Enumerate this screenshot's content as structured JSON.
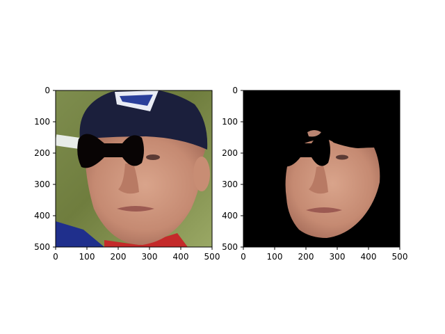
{
  "figure": {
    "panels": [
      {
        "name": "original-photo",
        "description": "",
        "x_ticks": [
          "0",
          "100",
          "200",
          "300",
          "400",
          "500"
        ],
        "y_ticks": [
          "0",
          "100",
          "200",
          "300",
          "400",
          "500"
        ],
        "xlim": [
          0,
          500
        ],
        "ylim": [
          500,
          0
        ]
      },
      {
        "name": "masked-face",
        "description": "",
        "x_ticks": [
          "0",
          "100",
          "200",
          "300",
          "400",
          "500"
        ],
        "y_ticks": [
          "0",
          "100",
          "200",
          "300",
          "400",
          "500"
        ],
        "xlim": [
          0,
          500
        ],
        "ylim": [
          500,
          0
        ]
      }
    ]
  }
}
